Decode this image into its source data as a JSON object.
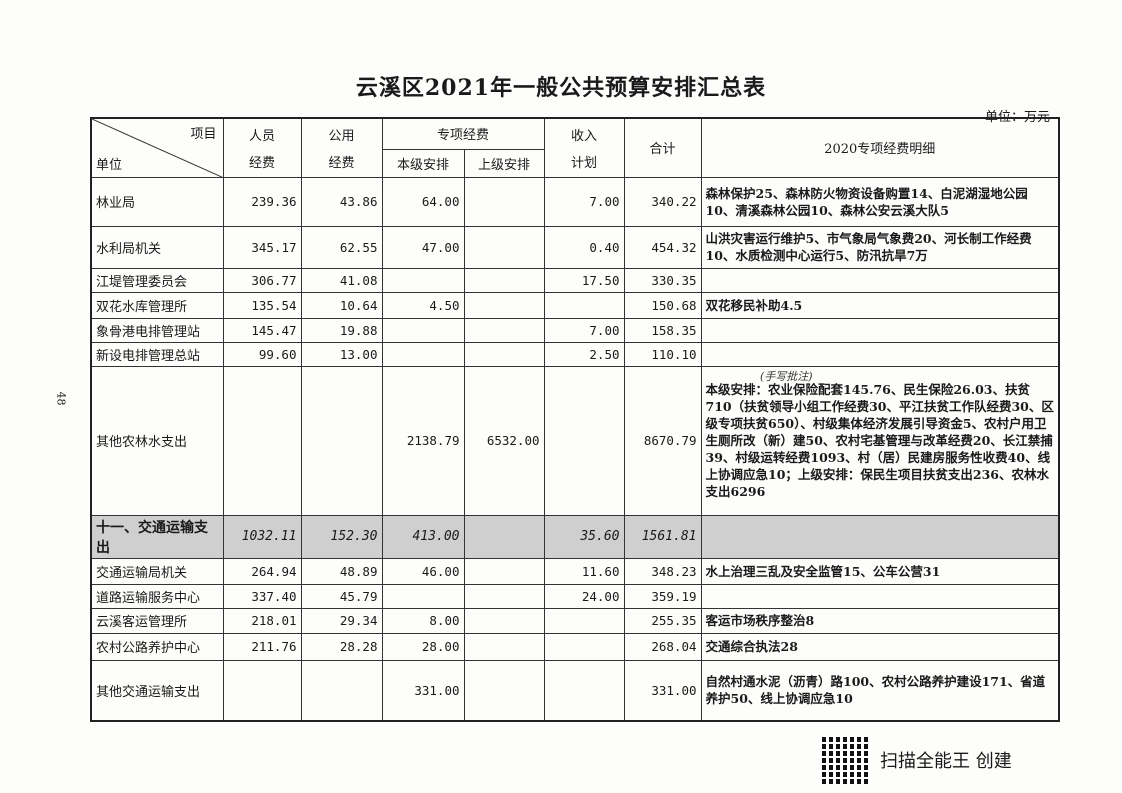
{
  "title": "云溪区2021年一般公共预算安排汇总表",
  "unit": "单位：万元",
  "page_number": "48",
  "header": {
    "item": "项目",
    "unit_col": "单位",
    "personnel_1": "人员",
    "personnel_2": "经费",
    "public_1": "公用",
    "public_2": "经费",
    "special": "专项经费",
    "local": "本级安排",
    "upper": "上级安排",
    "income_1": "收入",
    "income_2": "计划",
    "total": "合计",
    "detail": "2020专项经费明细"
  },
  "rows": [
    {
      "unit": "林业局",
      "personnel": "239.36",
      "public": "43.86",
      "local": "64.00",
      "upper": "",
      "income": "7.00",
      "total": "340.22",
      "detail": "森林保护25、森林防火物资设备购置14、白泥湖湿地公园10、清溪森林公园10、森林公安云溪大队5"
    },
    {
      "unit": "水利局机关",
      "personnel": "345.17",
      "public": "62.55",
      "local": "47.00",
      "upper": "",
      "income": "0.40",
      "total": "454.32",
      "detail": "山洪灾害运行维护5、市气象局气象费20、河长制工作经费10、水质检测中心运行5、防汛抗旱7万"
    },
    {
      "unit": "江堤管理委员会",
      "personnel": "306.77",
      "public": "41.08",
      "local": "",
      "upper": "",
      "income": "17.50",
      "total": "330.35",
      "detail": ""
    },
    {
      "unit": "双花水库管理所",
      "personnel": "135.54",
      "public": "10.64",
      "local": "4.50",
      "upper": "",
      "income": "",
      "total": "150.68",
      "detail": "双花移民补助4.5"
    },
    {
      "unit": "象骨港电排管理站",
      "personnel": "145.47",
      "public": "19.88",
      "local": "",
      "upper": "",
      "income": "7.00",
      "total": "158.35",
      "detail": ""
    },
    {
      "unit": "新设电排管理总站",
      "personnel": "99.60",
      "public": "13.00",
      "local": "",
      "upper": "",
      "income": "2.50",
      "total": "110.10",
      "detail": ""
    },
    {
      "unit": "其他农林水支出",
      "personnel": "",
      "public": "",
      "local": "2138.79",
      "upper": "6532.00",
      "income": "",
      "total": "8670.79",
      "detail": "本级安排：农业保险配套145.76、民生保险26.03、扶贫710（扶贫领导小组工作经费30、平江扶贫工作队经费30、区级专项扶贫650）、村级集体经济发展引导资金5、农村户用卫生厕所改（新）建50、农村宅基管理与改革经费20、长江禁捕39、村级运转经费1093、村（居）民建房服务性收费40、线上协调应急10；上级安排：保民生项目扶贫支出236、农林水支出6296"
    },
    {
      "unit": "十一、交通运输支出",
      "personnel": "1032.11",
      "public": "152.30",
      "local": "413.00",
      "upper": "",
      "income": "35.60",
      "total": "1561.81",
      "detail": "",
      "section": true
    },
    {
      "unit": "交通运输局机关",
      "personnel": "264.94",
      "public": "48.89",
      "local": "46.00",
      "upper": "",
      "income": "11.60",
      "total": "348.23",
      "detail": "水上治理三乱及安全监管15、公车公营31"
    },
    {
      "unit": "道路运输服务中心",
      "personnel": "337.40",
      "public": "45.79",
      "local": "",
      "upper": "",
      "income": "24.00",
      "total": "359.19",
      "detail": ""
    },
    {
      "unit": "云溪客运管理所",
      "personnel": "218.01",
      "public": "29.34",
      "local": "8.00",
      "upper": "",
      "income": "",
      "total": "255.35",
      "detail": "客运市场秩序整治8"
    },
    {
      "unit": "农村公路养护中心",
      "personnel": "211.76",
      "public": "28.28",
      "local": "28.00",
      "upper": "",
      "income": "",
      "total": "268.04",
      "detail": "交通综合执法28"
    },
    {
      "unit": "其他交通运输支出",
      "personnel": "",
      "public": "",
      "local": "331.00",
      "upper": "",
      "income": "",
      "total": "331.00",
      "detail": "自然村通水泥（沥青）路100、农村公路养护建设171、省道养护50、线上协调应急10"
    }
  ],
  "footer": {
    "text": "扫描全能王 创建",
    "icon": "qr-code-icon"
  }
}
